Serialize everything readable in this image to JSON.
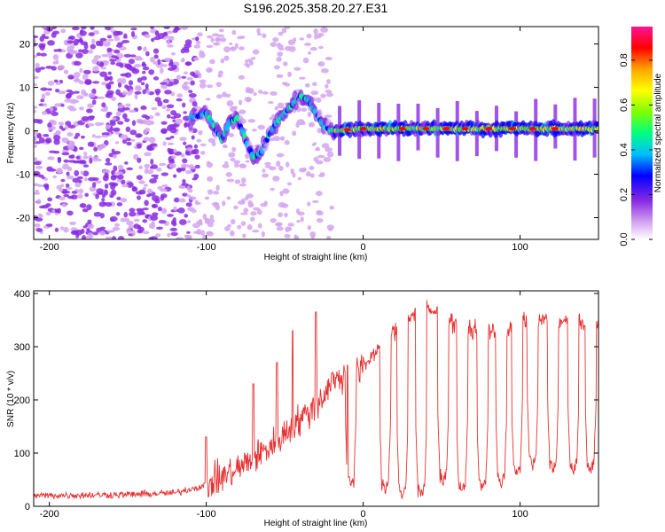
{
  "chart_data": [
    {
      "type": "heatmap",
      "title": "S196.2025.358.20.27.E31",
      "xlabel": "Height of straight line (km)",
      "ylabel": "Frequency (Hz)",
      "xlim": [
        -210,
        150
      ],
      "ylim": [
        -25,
        24
      ],
      "xticks": [
        -200,
        -100,
        0,
        100
      ],
      "xtick_labels": [
        "-200",
        "-100",
        "0",
        "100"
      ],
      "yticks": [
        -20,
        -10,
        0,
        10,
        20
      ],
      "ytick_labels": [
        "-20",
        "-10",
        "0",
        "10",
        "20"
      ],
      "colorbar": {
        "label": "Normalized spectral amplitude",
        "range": [
          0,
          0.95
        ],
        "ticks": [
          0.0,
          0.2,
          0.4,
          0.6,
          0.8
        ],
        "tick_labels": [
          "0.0",
          "0.2",
          "0.4",
          "0.6",
          "0.8"
        ],
        "colormap": [
          "#ffffff",
          "#d4a5f0",
          "#8a2be2",
          "#0000ff",
          "#00bfff",
          "#00ff7f",
          "#7fff00",
          "#ffff00",
          "#ffa500",
          "#ff0000",
          "#ff1493"
        ]
      },
      "ridge": {
        "name": "dominant frequency",
        "points": [
          [
            -110,
            3
          ],
          [
            -100,
            4
          ],
          [
            -95,
            1
          ],
          [
            -90,
            -2
          ],
          [
            -85,
            2
          ],
          [
            -80,
            3
          ],
          [
            -75,
            -2
          ],
          [
            -70,
            -6
          ],
          [
            -65,
            -5
          ],
          [
            -60,
            -1
          ],
          [
            -55,
            2
          ],
          [
            -50,
            4
          ],
          [
            -45,
            6
          ],
          [
            -40,
            8
          ],
          [
            -35,
            7
          ],
          [
            -30,
            4
          ],
          [
            -25,
            1
          ],
          [
            -20,
            0
          ],
          [
            0,
            0.5
          ],
          [
            150,
            0.5
          ]
        ]
      },
      "notes": "Diffuse low-amplitude speckle for x < -100 km; coherent band near 0 Hz (amplitude ~0.4-0.9) for x > -20 km, with periodic vertical streaks."
    },
    {
      "type": "line",
      "title": "",
      "xlabel": "Height of straight line (km)",
      "ylabel": "SNR (10 * v/v)",
      "xlim": [
        -210,
        150
      ],
      "ylim": [
        0,
        405
      ],
      "xticks": [
        -200,
        -100,
        0,
        100
      ],
      "xtick_labels": [
        "-200",
        "-100",
        "0",
        "100"
      ],
      "yticks": [
        0,
        100,
        200,
        300,
        400
      ],
      "ytick_labels": [
        "0",
        "100",
        "200",
        "300",
        "400"
      ],
      "series": [
        {
          "name": "SNR",
          "color": "#e83030",
          "envelope": [
            [
              -210,
              20
            ],
            [
              -150,
              22
            ],
            [
              -120,
              25
            ],
            [
              -100,
              40
            ],
            [
              -80,
              70
            ],
            [
              -60,
              110
            ],
            [
              -45,
              150
            ],
            [
              -30,
              190
            ],
            [
              -20,
              230
            ],
            [
              -10,
              250
            ],
            [
              0,
              260
            ],
            [
              10,
              300
            ],
            [
              20,
              330
            ],
            [
              30,
              360
            ],
            [
              40,
              370
            ],
            [
              50,
              360
            ],
            [
              60,
              340
            ],
            [
              70,
              330
            ],
            [
              80,
              330
            ],
            [
              90,
              320
            ],
            [
              100,
              350
            ],
            [
              110,
              350
            ],
            [
              120,
              350
            ],
            [
              130,
              345
            ],
            [
              140,
              340
            ],
            [
              150,
              345
            ]
          ],
          "dips": [
            [
              -8,
              30
            ],
            [
              14,
              20
            ],
            [
              25,
              5
            ],
            [
              37,
              10
            ],
            [
              51,
              35
            ],
            [
              63,
              15
            ],
            [
              76,
              20
            ],
            [
              88,
              30
            ],
            [
              98,
              50
            ],
            [
              108,
              65
            ],
            [
              121,
              60
            ],
            [
              134,
              55
            ],
            [
              145,
              55
            ]
          ],
          "spikes": [
            [
              -100,
              130
            ],
            [
              -70,
              230
            ],
            [
              -55,
              270
            ],
            [
              -45,
              330
            ],
            [
              -38,
              185
            ],
            [
              -30,
              365
            ],
            [
              -20,
              250
            ],
            [
              -10,
              265
            ]
          ]
        }
      ]
    }
  ]
}
